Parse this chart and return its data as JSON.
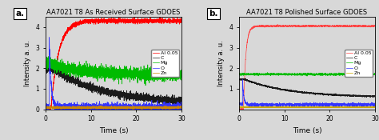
{
  "title_a": "AA7021 T8 As Received Surface GDOES",
  "title_b": "AA7021 T8 Polished Surface GDOES",
  "xlabel": "Time (s)",
  "ylabel": "Intensity a. u.",
  "label_a": "a.",
  "label_b": "b.",
  "xlim": [
    0,
    30
  ],
  "ylim_a": [
    0,
    4.5
  ],
  "ylim_b": [
    0,
    4.5
  ],
  "yticks_a": [
    0,
    1,
    2,
    3,
    4
  ],
  "yticks_b": [
    1,
    2,
    3,
    4
  ],
  "xticks": [
    0,
    10,
    20,
    30
  ],
  "legend_labels": [
    "Al 0.05",
    "C",
    "Mg",
    "O",
    "Zn"
  ],
  "colors_a": [
    "#ff0000",
    "#1a1a1a",
    "#00bb00",
    "#3333ff",
    "#cc8800"
  ],
  "colors_b": [
    "#ff4444",
    "#1a1a1a",
    "#00bb00",
    "#3333ff",
    "#ccaa00"
  ],
  "bg_color": "#d8d8d8",
  "plot_bg": "#d8d8d8",
  "noise_seed": 42
}
